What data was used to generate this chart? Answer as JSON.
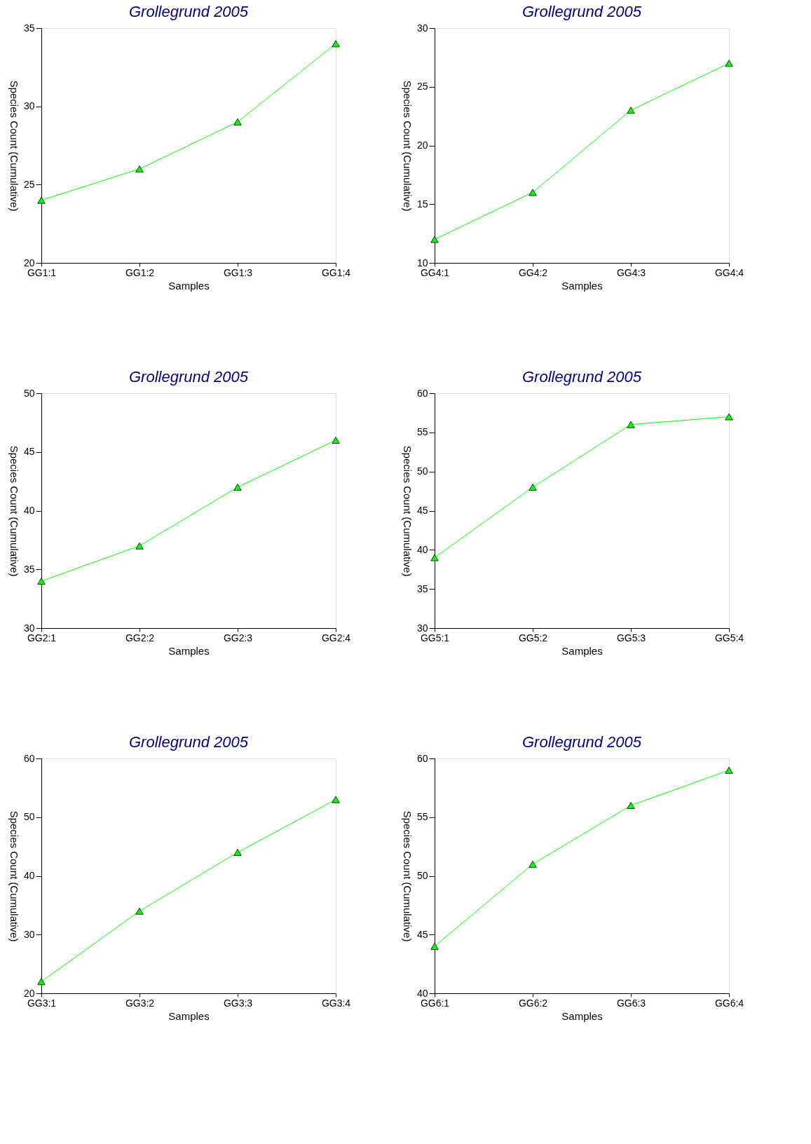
{
  "chart_data": [
    {
      "type": "line",
      "title": "Grollegrund 2005",
      "xlabel": "Samples",
      "ylabel": "Species Count (Cumulative)",
      "categories": [
        "GG1:1",
        "GG1:2",
        "GG1:3",
        "GG1:4"
      ],
      "series": [
        {
          "color": "#00ff00",
          "values": [
            24,
            26,
            29,
            34
          ]
        }
      ],
      "ylim": [
        20,
        35
      ],
      "yticks": [
        20,
        25,
        30,
        35
      ],
      "grid": false,
      "marker": "triangle",
      "line_style": "solid"
    },
    {
      "type": "line",
      "title": "Grollegrund 2005",
      "xlabel": "Samples",
      "ylabel": "Species Count (Cumulative)",
      "categories": [
        "GG4:1",
        "GG4:2",
        "GG4:3",
        "GG4:4"
      ],
      "series": [
        {
          "color": "#00ff00",
          "values": [
            12,
            16,
            23,
            27
          ]
        }
      ],
      "ylim": [
        10,
        30
      ],
      "yticks": [
        10,
        15,
        20,
        25,
        30
      ],
      "grid": false,
      "marker": "triangle",
      "line_style": "solid"
    },
    {
      "type": "line",
      "title": "Grollegrund 2005",
      "xlabel": "Samples",
      "ylabel": "Species Count (Cumulative)",
      "categories": [
        "GG2:1",
        "GG2:2",
        "GG2:3",
        "GG2:4"
      ],
      "series": [
        {
          "color": "#00ff00",
          "values": [
            34,
            37,
            42,
            46
          ]
        }
      ],
      "ylim": [
        30,
        50
      ],
      "yticks": [
        30,
        35,
        40,
        45,
        50
      ],
      "grid": false,
      "marker": "triangle",
      "line_style": "solid"
    },
    {
      "type": "line",
      "title": "Grollegrund 2005",
      "xlabel": "Samples",
      "ylabel": "Species Count (Cumulative)",
      "categories": [
        "GG5:1",
        "GG5:2",
        "GG5:3",
        "GG5:4"
      ],
      "series": [
        {
          "color": "#00ff00",
          "values": [
            39,
            48,
            56,
            57
          ]
        }
      ],
      "ylim": [
        30,
        60
      ],
      "yticks": [
        30,
        35,
        40,
        45,
        50,
        55,
        60
      ],
      "grid": false,
      "marker": "triangle",
      "line_style": "solid"
    },
    {
      "type": "line",
      "title": "Grollegrund 2005",
      "xlabel": "Samples",
      "ylabel": "Species Count (Cumulative)",
      "categories": [
        "GG3:1",
        "GG3:2",
        "GG3:3",
        "GG3:4"
      ],
      "series": [
        {
          "color": "#00ff00",
          "values": [
            22,
            34,
            44,
            53
          ]
        }
      ],
      "ylim": [
        20,
        60
      ],
      "yticks": [
        20,
        30,
        40,
        50,
        60
      ],
      "grid": false,
      "marker": "triangle",
      "line_style": "solid"
    },
    {
      "type": "line",
      "title": "Grollegrund 2005",
      "xlabel": "Samples",
      "ylabel": "Species Count (Cumulative)",
      "categories": [
        "GG6:1",
        "GG6:2",
        "GG6:3",
        "GG6:4"
      ],
      "series": [
        {
          "color": "#00ff00",
          "values": [
            44,
            51,
            56,
            59
          ]
        }
      ],
      "ylim": [
        40,
        60
      ],
      "yticks": [
        40,
        45,
        50,
        55,
        60
      ],
      "grid": false,
      "marker": "triangle",
      "line_style": "solid"
    }
  ]
}
